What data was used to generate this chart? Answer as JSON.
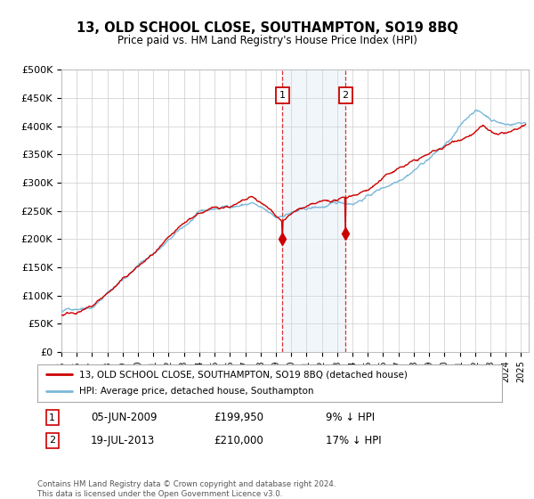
{
  "title": "13, OLD SCHOOL CLOSE, SOUTHAMPTON, SO19 8BQ",
  "subtitle": "Price paid vs. HM Land Registry's House Price Index (HPI)",
  "ylabel_ticks": [
    "£0",
    "£50K",
    "£100K",
    "£150K",
    "£200K",
    "£250K",
    "£300K",
    "£350K",
    "£400K",
    "£450K",
    "£500K"
  ],
  "ytick_vals": [
    0,
    50000,
    100000,
    150000,
    200000,
    250000,
    300000,
    350000,
    400000,
    450000,
    500000
  ],
  "ylim": [
    0,
    500000
  ],
  "xlim_start": 1995.0,
  "xlim_end": 2025.5,
  "transaction1_date": 2009.43,
  "transaction2_date": 2013.54,
  "transaction1_price": 199950,
  "transaction2_price": 210000,
  "hpi_color": "#7ab8d9",
  "price_color": "#cc0000",
  "annotation_bg": "#ddeeff",
  "vline_color": "#cc0000",
  "legend_label1": "13, OLD SCHOOL CLOSE, SOUTHAMPTON, SO19 8BQ (detached house)",
  "legend_label2": "HPI: Average price, detached house, Southampton",
  "table_row1": [
    "1",
    "05-JUN-2009",
    "£199,950",
    "9% ↓ HPI"
  ],
  "table_row2": [
    "2",
    "19-JUL-2013",
    "£210,000",
    "17% ↓ HPI"
  ],
  "footer": "Contains HM Land Registry data © Crown copyright and database right 2024.\nThis data is licensed under the Open Government Licence v3.0.",
  "background_color": "#ffffff",
  "grid_color": "#cccccc",
  "num_points": 730,
  "year_start": 1995.0,
  "year_end": 2025.3
}
